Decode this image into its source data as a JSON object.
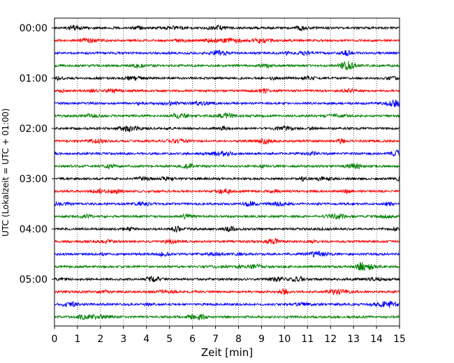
{
  "chart_data": {
    "type": "line",
    "title": "",
    "xlabel": "Zeit  [min]",
    "ylabel": "UTC (Lokalzeit = UTC + 01:00)",
    "xlim": [
      0,
      15
    ],
    "x_ticks": [
      "0",
      "1",
      "2",
      "3",
      "4",
      "5",
      "6",
      "7",
      "8",
      "9",
      "10",
      "11",
      "12",
      "13",
      "14",
      "15"
    ],
    "y_ticks": [
      "00:00",
      "01:00",
      "02:00",
      "03:00",
      "04:00",
      "05:00"
    ],
    "y_tick_row_index": [
      0,
      4,
      8,
      12,
      16,
      20
    ],
    "grid": "vertical dotted lines at each minute",
    "trace_minutes": 15,
    "trace_count": 24,
    "trace_colors": [
      "#000000",
      "#ff0000",
      "#0000ff",
      "#008000"
    ],
    "trace_start_times": [
      "00:00",
      "00:15",
      "00:30",
      "00:45",
      "01:00",
      "01:15",
      "01:30",
      "01:45",
      "02:00",
      "02:15",
      "02:30",
      "02:45",
      "03:00",
      "03:15",
      "03:30",
      "03:45",
      "04:00",
      "04:15",
      "04:30",
      "04:45",
      "05:00",
      "05:15",
      "05:30",
      "05:45"
    ]
  }
}
